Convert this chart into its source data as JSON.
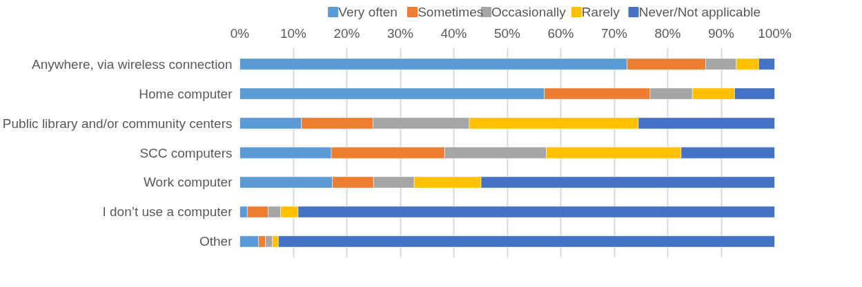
{
  "chart_data": {
    "type": "bar",
    "orientation": "horizontal",
    "stacked": true,
    "categories": [
      "Anywhere, via wireless connection",
      "Home computer",
      "Public library and/or community centers",
      "SCC computers",
      "Work computer",
      "I don’t use a computer",
      "Other"
    ],
    "series": [
      {
        "name": "Very often",
        "color": "#5b9bd5",
        "values": [
          72.4,
          56.9,
          11.5,
          17.1,
          17.3,
          1.4,
          3.5
        ]
      },
      {
        "name": "Sometimes",
        "color": "#ed7d31",
        "values": [
          14.7,
          19.8,
          13.4,
          21.2,
          7.7,
          3.9,
          1.3
        ]
      },
      {
        "name": "Occasionally",
        "color": "#a5a5a5",
        "values": [
          5.7,
          7.9,
          18.0,
          19.0,
          7.6,
          2.3,
          1.3
        ]
      },
      {
        "name": "Rarely",
        "color": "#ffc000",
        "values": [
          4.2,
          7.9,
          31.6,
          25.2,
          12.5,
          3.3,
          1.1
        ]
      },
      {
        "name": "Never/Not applicable",
        "color": "#4472c4",
        "values": [
          3.0,
          7.5,
          25.5,
          17.5,
          54.9,
          89.1,
          92.8
        ]
      }
    ],
    "xlim": [
      0,
      100
    ],
    "xticks": [
      {
        "value": 0,
        "label": "0%"
      },
      {
        "value": 10,
        "label": "10%"
      },
      {
        "value": 20,
        "label": "20%"
      },
      {
        "value": 30,
        "label": "30%"
      },
      {
        "value": 40,
        "label": "40%"
      },
      {
        "value": 50,
        "label": "50%"
      },
      {
        "value": 60,
        "label": "60%"
      },
      {
        "value": 70,
        "label": "70%"
      },
      {
        "value": 80,
        "label": "80%"
      },
      {
        "value": 90,
        "label": "90%"
      },
      {
        "value": 100,
        "label": "100%"
      }
    ],
    "grid": "x",
    "legend": "top"
  }
}
